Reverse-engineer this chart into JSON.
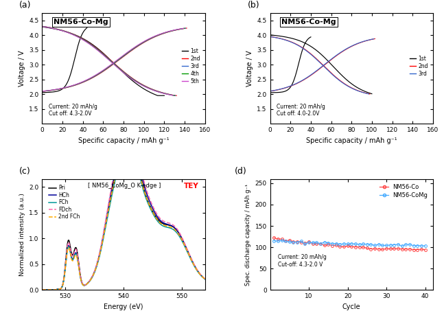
{
  "panel_a": {
    "title": "NM56-Co-Mg",
    "xlabel": "Specific capacity / mAh g⁻¹",
    "ylabel": "Voltage / V",
    "xlim": [
      0,
      160
    ],
    "ylim": [
      1.0,
      4.75
    ],
    "yticks": [
      1.5,
      2.0,
      2.5,
      3.0,
      3.5,
      4.0,
      4.5
    ],
    "xticks": [
      0,
      20,
      40,
      60,
      80,
      100,
      120,
      140,
      160
    ],
    "annotation": "Current: 20 mAh/g\nCut off: 4.3-2.0V",
    "legend_labels": [
      "1st",
      "2nd",
      "3rd",
      "4th",
      "5th"
    ],
    "legend_colors": [
      "#000000",
      "#ff0000",
      "#3366cc",
      "#009900",
      "#cc44cc"
    ],
    "panel_label": "(a)"
  },
  "panel_b": {
    "title": "NM56-Co-Mg",
    "xlabel": "Specific capacity / mAh g⁻¹",
    "ylabel": "Voltage / V",
    "xlim": [
      0,
      160
    ],
    "ylim": [
      1.0,
      4.75
    ],
    "yticks": [
      1.5,
      2.0,
      2.5,
      3.0,
      3.5,
      4.0,
      4.5
    ],
    "xticks": [
      0,
      20,
      40,
      60,
      80,
      100,
      120,
      140,
      160
    ],
    "annotation": "Current: 20 mAh/g\nCut off: 4.0-2.0V",
    "legend_labels": [
      "1st",
      "2nd",
      "3rd"
    ],
    "legend_colors": [
      "#000000",
      "#ff0000",
      "#3366cc"
    ],
    "panel_label": "(b)"
  },
  "panel_c": {
    "title": "[ NM56_CoMg_O K-edge ]",
    "tey_label": "TEY",
    "xlabel": "Energy (eV)",
    "ylabel": "Normalized intensity (a.u.)",
    "xlim": [
      526,
      554
    ],
    "ylim": [
      0.0,
      2.15
    ],
    "yticks": [
      0.0,
      0.5,
      1.0,
      1.5,
      2.0
    ],
    "xticks": [
      530,
      540,
      550
    ],
    "legend_labels": [
      "Pri",
      "HCh",
      "FCh",
      "FDch",
      "2nd FCh"
    ],
    "legend_colors": [
      "#000000",
      "#000099",
      "#009999",
      "#ff66aa",
      "#ffaa00"
    ],
    "legend_styles": [
      "solid",
      "solid",
      "solid",
      "dashed",
      "dashed"
    ],
    "panel_label": "(c)"
  },
  "panel_d": {
    "xlabel": "Cycle",
    "ylabel": "Spec. discharge capacity / mAh g⁻¹",
    "xlim": [
      0,
      42
    ],
    "ylim": [
      0,
      260
    ],
    "yticks": [
      0,
      50,
      100,
      150,
      200,
      250
    ],
    "xticks": [
      10,
      20,
      30,
      40
    ],
    "annotation": "Current: 20 mAh/g\nCut-off: 4.3-2.0 V",
    "legend_labels": [
      "NM56-Co",
      "NM56-CoMg"
    ],
    "legend_colors": [
      "#ff4444",
      "#44aaff"
    ],
    "panel_label": "(d)"
  },
  "label_fontsize": 7,
  "tick_fontsize": 6.5,
  "panel_label_fontsize": 9,
  "title_fontsize": 8,
  "bg_color": "#ffffff"
}
